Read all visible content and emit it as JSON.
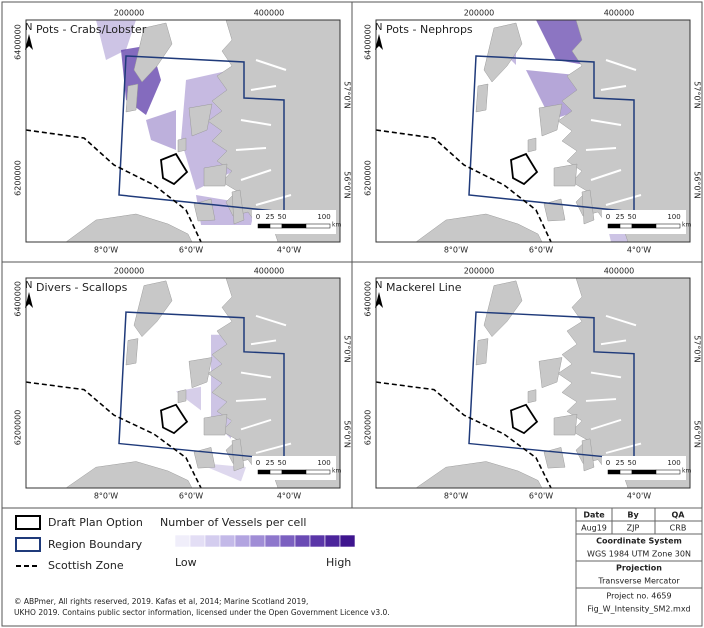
{
  "panels": [
    {
      "title": "Pots - Crabs/Lobster"
    },
    {
      "title": "Pots - Nephrops"
    },
    {
      "title": "Divers - Scallops"
    },
    {
      "title": "Mackerel Line"
    }
  ],
  "axes": {
    "north": "N",
    "top": [
      "200000",
      "400000"
    ],
    "left": [
      "6400000",
      "6200000"
    ],
    "right": [
      "57°0'N",
      "56°0'N"
    ],
    "bottom": [
      "8°0'W",
      "6°0'W",
      "4°0'W"
    ],
    "scale": [
      "0",
      "25",
      "50",
      "100"
    ],
    "scale_unit": "km"
  },
  "legend": {
    "items": [
      "Draft Plan Option",
      "Region Boundary",
      "Scottish Zone"
    ],
    "ramp_title": "Number of Vessels per cell",
    "low": "Low",
    "high": "High"
  },
  "credits": [
    "© ABPmer, All rights reserved, 2019. Kafas et al, 2014; Marine Scotland 2019,",
    "UKHO 2019. Contains public sector information, licensed under the Open Government Licence v3.0."
  ],
  "info": {
    "headers": [
      "Date",
      "By",
      "QA"
    ],
    "values": [
      "Aug19",
      "ZJP",
      "CRB"
    ],
    "coord_label": "Coordinate System",
    "coord": "WGS 1984 UTM Zone 30N",
    "proj_label": "Projection",
    "proj": "Transverse Mercator",
    "project": "Project no. 4659",
    "file": "Fig_W_Intensity_SM2.mxd"
  }
}
